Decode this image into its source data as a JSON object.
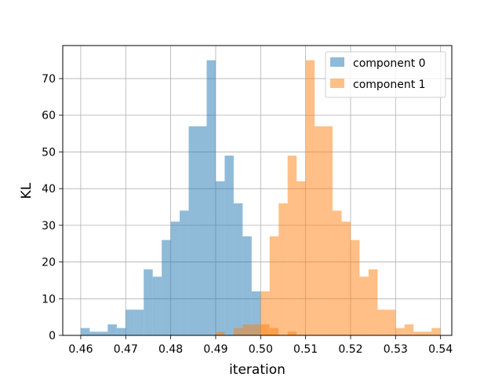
{
  "chart_data": {
    "type": "histogram",
    "xlabel": "iteration",
    "ylabel": "KL",
    "xlim": [
      0.456,
      0.5425
    ],
    "ylim": [
      0,
      79
    ],
    "grid": true,
    "legend_position": "top-right",
    "bin_width": 0.002,
    "x_ticks": [
      "0.46",
      "0.47",
      "0.48",
      "0.49",
      "0.50",
      "0.51",
      "0.52",
      "0.53",
      "0.54"
    ],
    "y_ticks": [
      "0",
      "10",
      "20",
      "30",
      "40",
      "50",
      "60",
      "70"
    ],
    "series": [
      {
        "name": "component 0",
        "color": "#1f77b4",
        "opacity": 0.5,
        "bin_start": 0.46,
        "counts": [
          2,
          1,
          1,
          3,
          2,
          7,
          7,
          18,
          16,
          26,
          31,
          34,
          57,
          57,
          75,
          42,
          49,
          36,
          27,
          12,
          0,
          0,
          0,
          0,
          0,
          0,
          0,
          0,
          0,
          0,
          0,
          0,
          0,
          0,
          0,
          0,
          0,
          0,
          0,
          0
        ]
      },
      {
        "name": "component 1",
        "color": "#ff7f0e",
        "opacity": 0.5,
        "bin_start": 0.46,
        "counts": [
          0,
          0,
          0,
          0,
          0,
          0,
          0,
          0,
          0,
          0,
          0,
          0,
          0,
          0,
          0,
          1,
          0,
          2,
          3,
          3,
          3,
          2,
          0,
          1,
          0,
          0,
          0,
          0,
          0,
          0,
          0,
          0,
          0,
          0,
          0,
          0,
          0,
          0,
          0,
          0
        ]
      },
      {
        "name": "component 1",
        "color": "#ff7f0e",
        "opacity": 0.5,
        "bin_start": 0.46,
        "counts": [
          0,
          0,
          0,
          0,
          0,
          0,
          0,
          0,
          0,
          0,
          0,
          0,
          0,
          0,
          0,
          0,
          0,
          0,
          0,
          0,
          12,
          27,
          36,
          49,
          42,
          75,
          57,
          57,
          34,
          31,
          26,
          16,
          18,
          7,
          7,
          2,
          3,
          1,
          1,
          2
        ]
      }
    ]
  }
}
